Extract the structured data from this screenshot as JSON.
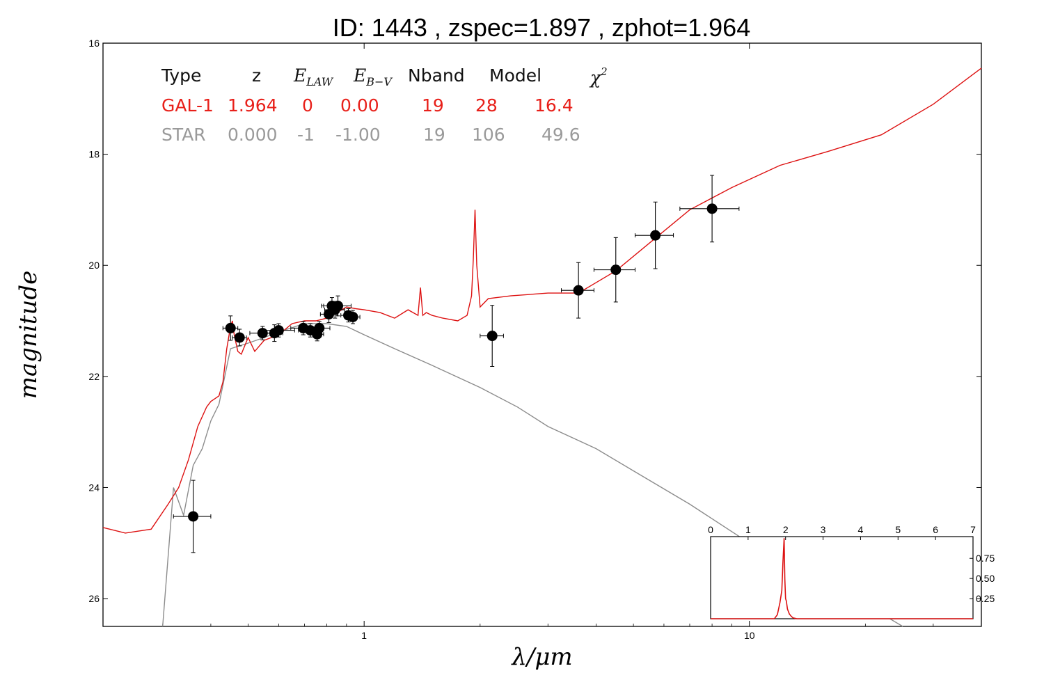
{
  "chart_data": [
    {
      "type": "scatter",
      "title": "ID:  1443  , zspec=1.897 , zphot=1.964",
      "xlabel": "λ/μm",
      "ylabel": "magnitude",
      "xscale": "log",
      "xlim": [
        0.21,
        40
      ],
      "ylim": [
        26.5,
        16.0
      ],
      "y_inverted": true,
      "x_tick_labels": [
        "1",
        "10"
      ],
      "x_ticks": [
        1,
        10
      ],
      "y_ticks": [
        16,
        18,
        20,
        22,
        24,
        26
      ],
      "y_tick_labels": [
        "16",
        "18",
        "20",
        "22",
        "24",
        "26"
      ],
      "grid": false,
      "colors": {
        "galaxy": "#dd1111",
        "star": "#8c8c8c",
        "points": "#000000"
      },
      "table": {
        "headers": [
          "Type",
          "z",
          "E_LAW",
          "E_B-V",
          "Nband",
          "Model",
          "χ²"
        ],
        "rows": [
          {
            "name": "GAL-1",
            "color": "#e8201a",
            "cells": [
              "GAL-1",
              "1.964",
              "0",
              "0.00",
              "19",
              "28",
              "16.4"
            ]
          },
          {
            "name": "STAR",
            "color": "#9a9a9a",
            "cells": [
              "STAR",
              "0.000",
              "-1",
              "-1.00",
              "19",
              "106",
              "49.6"
            ]
          }
        ]
      },
      "photometry": [
        {
          "x": 0.36,
          "y": 24.52,
          "xerr": 0.04,
          "yerr": 0.65
        },
        {
          "x": 0.45,
          "y": 21.13,
          "xerr": 0.02,
          "yerr": 0.22
        },
        {
          "x": 0.475,
          "y": 21.3,
          "xerr": 0.02,
          "yerr": 0.15
        },
        {
          "x": 0.545,
          "y": 21.22,
          "xerr": 0.04,
          "yerr": 0.12
        },
        {
          "x": 0.585,
          "y": 21.22,
          "xerr": 0.03,
          "yerr": 0.15
        },
        {
          "x": 0.6,
          "y": 21.17,
          "xerr": 0.06,
          "yerr": 0.12
        },
        {
          "x": 0.695,
          "y": 21.13,
          "xerr": 0.05,
          "yerr": 0.12
        },
        {
          "x": 0.725,
          "y": 21.17,
          "xerr": 0.05,
          "yerr": 0.12
        },
        {
          "x": 0.755,
          "y": 21.24,
          "xerr": 0.03,
          "yerr": 0.12
        },
        {
          "x": 0.765,
          "y": 21.13,
          "xerr": 0.05,
          "yerr": 0.12
        },
        {
          "x": 0.81,
          "y": 20.88,
          "xerr": 0.04,
          "yerr": 0.15
        },
        {
          "x": 0.825,
          "y": 20.73,
          "xerr": 0.05,
          "yerr": 0.15
        },
        {
          "x": 0.84,
          "y": 20.8,
          "xerr": 0.05,
          "yerr": 0.15
        },
        {
          "x": 0.855,
          "y": 20.73,
          "xerr": 0.07,
          "yerr": 0.18
        },
        {
          "x": 0.91,
          "y": 20.9,
          "xerr": 0.04,
          "yerr": 0.12
        },
        {
          "x": 0.935,
          "y": 20.93,
          "xerr": 0.04,
          "yerr": 0.12
        },
        {
          "x": 2.15,
          "y": 21.27,
          "xerr": 0.15,
          "yerr": 0.55
        },
        {
          "x": 3.6,
          "y": 20.45,
          "xerr": 0.35,
          "yerr": 0.5
        },
        {
          "x": 4.5,
          "y": 20.08,
          "xerr": 0.55,
          "yerr": 0.58
        },
        {
          "x": 5.7,
          "y": 19.46,
          "xerr": 0.65,
          "yerr": 0.6
        },
        {
          "x": 8.0,
          "y": 18.98,
          "xerr": 1.4,
          "yerr": 0.6
        }
      ],
      "galaxy_model": {
        "x": [
          0.21,
          0.24,
          0.28,
          0.31,
          0.33,
          0.35,
          0.37,
          0.39,
          0.4,
          0.41,
          0.42,
          0.43,
          0.44,
          0.45,
          0.455,
          0.46,
          0.47,
          0.48,
          0.5,
          0.52,
          0.55,
          0.6,
          0.65,
          0.7,
          0.75,
          0.8,
          0.85,
          0.9,
          0.95,
          1.0,
          1.1,
          1.2,
          1.3,
          1.38,
          1.4,
          1.42,
          1.45,
          1.5,
          1.6,
          1.75,
          1.85,
          1.9,
          1.92,
          1.94,
          1.96,
          2.0,
          2.1,
          2.4,
          3.0,
          3.6,
          4.5,
          5.5,
          7.0,
          9.0,
          12.0,
          16.0,
          22.0,
          30.0,
          40.0
        ],
        "y": [
          24.72,
          24.82,
          24.75,
          24.3,
          24.0,
          23.5,
          22.9,
          22.55,
          22.45,
          22.4,
          22.35,
          22.1,
          21.5,
          21.1,
          21.0,
          21.25,
          21.55,
          21.6,
          21.3,
          21.55,
          21.35,
          21.25,
          21.05,
          21.0,
          21.0,
          20.95,
          20.85,
          20.75,
          20.78,
          20.8,
          20.85,
          20.95,
          20.8,
          20.9,
          20.4,
          20.9,
          20.85,
          20.9,
          20.95,
          21.0,
          20.9,
          20.55,
          19.9,
          19.0,
          20.0,
          20.75,
          20.6,
          20.55,
          20.5,
          20.5,
          20.1,
          19.6,
          19.0,
          18.6,
          18.2,
          17.95,
          17.65,
          17.1,
          16.45
        ]
      },
      "star_model": {
        "x": [
          0.3,
          0.32,
          0.34,
          0.36,
          0.38,
          0.4,
          0.42,
          0.45,
          0.5,
          0.55,
          0.6,
          0.7,
          0.8,
          0.9,
          1.0,
          1.2,
          1.5,
          2.0,
          2.5,
          3.0,
          4.0,
          5.0,
          7.0,
          10.0,
          15.0,
          20.0,
          25.0
        ],
        "y": [
          26.5,
          24.0,
          24.5,
          23.6,
          23.3,
          22.8,
          22.5,
          21.5,
          21.4,
          21.3,
          21.2,
          21.05,
          21.05,
          21.1,
          21.25,
          21.5,
          21.8,
          22.2,
          22.55,
          22.9,
          23.3,
          23.7,
          24.3,
          25.0,
          25.6,
          26.1,
          26.5
        ]
      }
    },
    {
      "type": "line",
      "title": "",
      "xlim": [
        0,
        7
      ],
      "ylim": [
        0,
        1.02
      ],
      "x_ticks": [
        0,
        1,
        2,
        3,
        4,
        5,
        6,
        7
      ],
      "x_tick_labels": [
        "0",
        "1",
        "2",
        "3",
        "4",
        "5",
        "6",
        "7"
      ],
      "y_ticks": [
        0.25,
        0.5,
        0.75
      ],
      "y_tick_labels": [
        "0.25",
        "0.50",
        "0.75"
      ],
      "color": "#dd1111",
      "x": [
        0,
        1.7,
        1.78,
        1.85,
        1.9,
        1.93,
        1.96,
        1.98,
        2.0,
        2.02,
        2.05,
        2.1,
        2.15,
        2.2,
        2.3,
        7.0
      ],
      "y": [
        0,
        0,
        0.05,
        0.2,
        0.35,
        0.7,
        1.0,
        0.5,
        0.25,
        0.22,
        0.12,
        0.06,
        0.03,
        0.01,
        0,
        0
      ]
    }
  ]
}
